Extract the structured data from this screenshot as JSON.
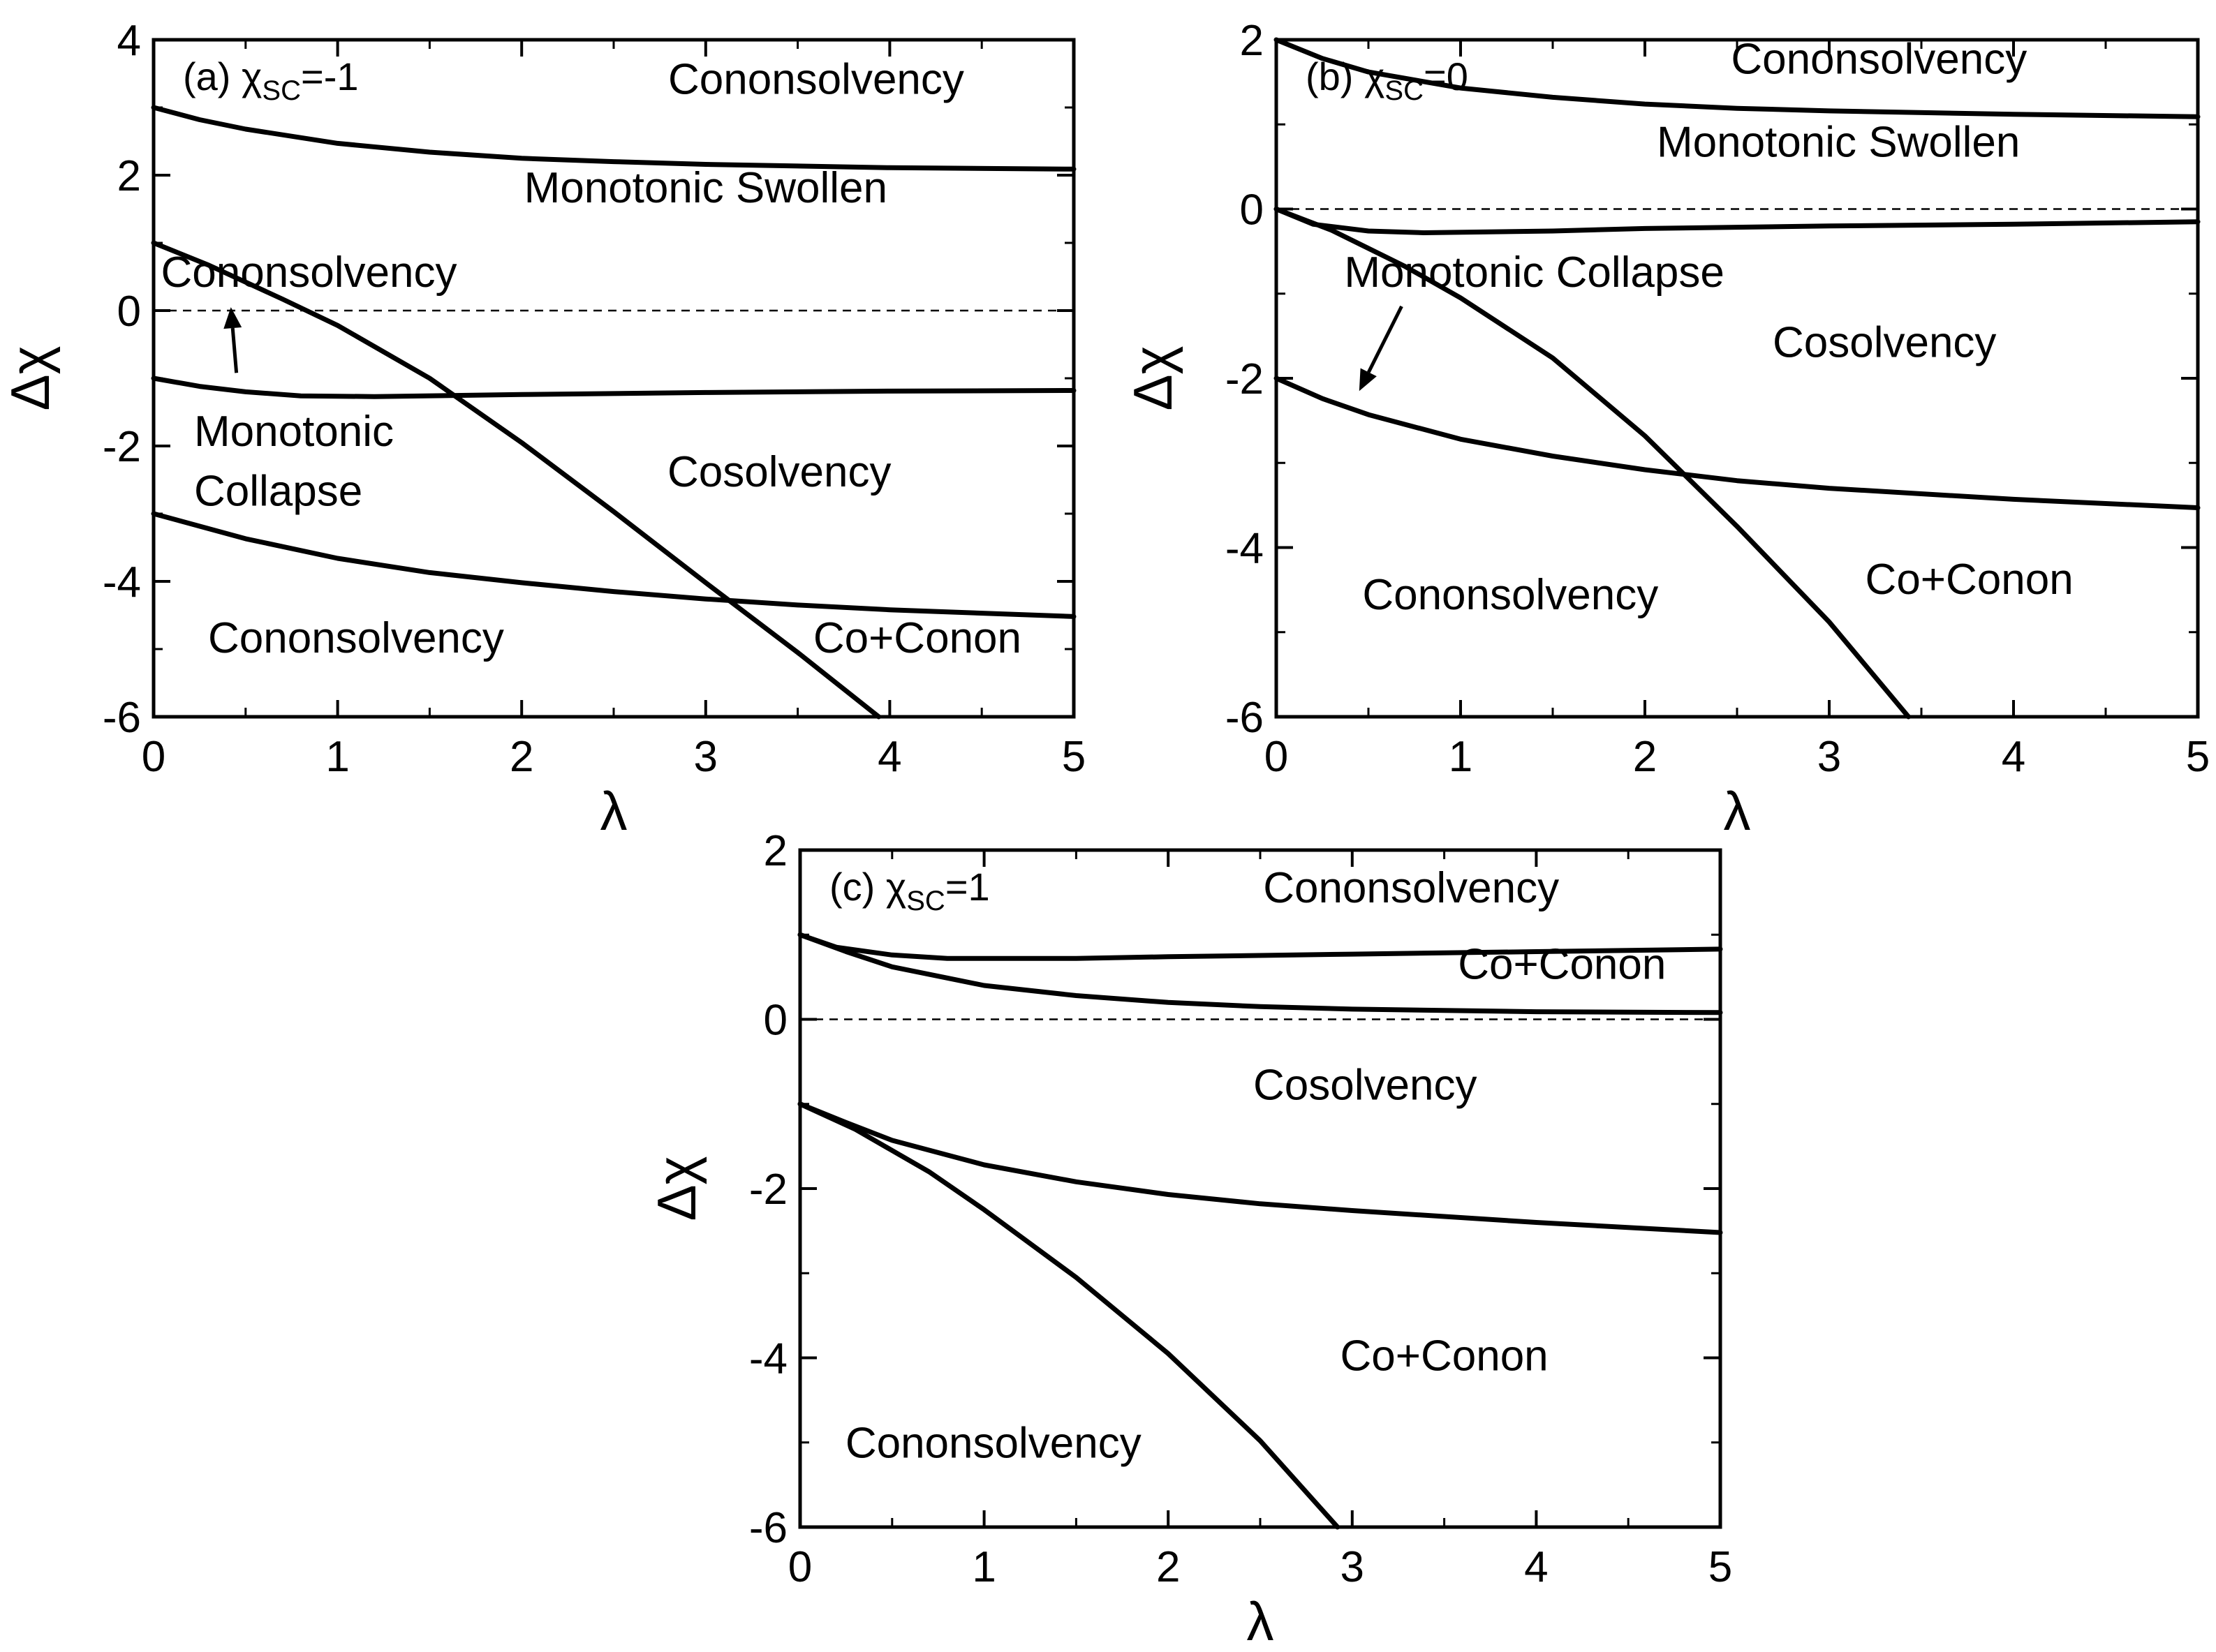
{
  "chart_data": [
    {
      "type": "line",
      "panel_label": {
        "prefix": "(a) ",
        "symbol": "χ",
        "subscript": "SC",
        "suffix": "=-1"
      },
      "xlabel": "λ",
      "ylabel": "Δχ",
      "xlim": [
        0,
        5
      ],
      "ylim": [
        -6,
        4
      ],
      "xticks": [
        "0",
        "1",
        "2",
        "3",
        "4",
        "5"
      ],
      "yticks": [
        "4",
        "2",
        "0",
        "-2",
        "-4",
        "-6"
      ],
      "reference_line": {
        "y": 0,
        "style": "dashed"
      },
      "series": [
        {
          "x": [
            0,
            0.25,
            0.5,
            1,
            1.5,
            2,
            2.5,
            3,
            4,
            5
          ],
          "y": [
            3.0,
            2.82,
            2.68,
            2.47,
            2.34,
            2.25,
            2.2,
            2.16,
            2.11,
            2.09
          ]
        },
        {
          "x": [
            0,
            0.25,
            0.5,
            0.8,
            1.2,
            2,
            3,
            4,
            5
          ],
          "y": [
            -1.0,
            -1.12,
            -1.2,
            -1.26,
            -1.27,
            -1.24,
            -1.21,
            -1.19,
            -1.18
          ]
        },
        {
          "x": [
            0,
            0.5,
            1,
            1.5,
            2,
            2.5,
            3,
            3.5,
            4,
            5
          ],
          "y": [
            -3.0,
            -3.37,
            -3.66,
            -3.87,
            -4.02,
            -4.15,
            -4.26,
            -4.35,
            -4.42,
            -4.52
          ]
        },
        {
          "x": [
            0,
            0.3,
            0.7,
            1,
            1.5,
            2,
            2.5,
            3,
            3.5,
            3.94
          ],
          "y": [
            1.0,
            0.67,
            0.17,
            -0.22,
            -1.0,
            -1.95,
            -2.97,
            -4.02,
            -5.05,
            -6.0
          ]
        }
      ],
      "annotations": [
        {
          "text": "Cononsolvency",
          "x": 3.6,
          "y": 3.2
        },
        {
          "text": "Monotonic Swollen",
          "x": 3.0,
          "y": 1.6
        },
        {
          "text": "Cononsolvency",
          "x": 0.04,
          "y": 0.35
        },
        {
          "text": "Monotonic",
          "x": 0.22,
          "y": -2.0
        },
        {
          "text": "Collapse",
          "x": 0.22,
          "y": -2.88
        },
        {
          "text": "Cosolvency",
          "x": 3.4,
          "y": -2.6
        },
        {
          "text": "Cononsolvency",
          "x": 1.1,
          "y": -5.05
        },
        {
          "text": "Co+Conon",
          "x": 4.15,
          "y": -5.05
        }
      ],
      "arrows": [
        {
          "from": [
            0.45,
            -0.92
          ],
          "to": [
            0.42,
            0.05
          ]
        }
      ]
    },
    {
      "type": "line",
      "panel_label": {
        "prefix": "(b) ",
        "symbol": "χ",
        "subscript": "SC",
        "suffix": "=0"
      },
      "xlabel": "λ",
      "ylabel": "Δχ",
      "xlim": [
        0,
        5
      ],
      "ylim": [
        -6,
        2
      ],
      "xticks": [
        "0",
        "1",
        "2",
        "3",
        "4",
        "5"
      ],
      "yticks": [
        "2",
        "0",
        "-2",
        "-4",
        "-6"
      ],
      "reference_line": {
        "y": 0,
        "style": "dashed"
      },
      "series": [
        {
          "x": [
            0,
            0.25,
            0.5,
            1,
            1.5,
            2,
            2.5,
            3,
            4,
            5
          ],
          "y": [
            2.0,
            1.78,
            1.62,
            1.43,
            1.32,
            1.24,
            1.19,
            1.16,
            1.12,
            1.09
          ]
        },
        {
          "x": [
            0,
            0.2,
            0.5,
            0.8,
            1.5,
            2,
            3,
            4,
            5
          ],
          "y": [
            0.0,
            -0.18,
            -0.26,
            -0.28,
            -0.26,
            -0.23,
            -0.2,
            -0.18,
            -0.15
          ]
        },
        {
          "x": [
            0,
            0.25,
            0.5,
            1,
            1.5,
            2,
            2.5,
            3,
            4,
            5
          ],
          "y": [
            -2.0,
            -2.24,
            -2.43,
            -2.72,
            -2.92,
            -3.08,
            -3.21,
            -3.3,
            -3.43,
            -3.53
          ]
        },
        {
          "x": [
            0,
            0.3,
            0.7,
            1,
            1.5,
            2,
            2.5,
            3,
            3.43
          ],
          "y": [
            0.0,
            -0.25,
            -0.68,
            -1.05,
            -1.76,
            -2.68,
            -3.75,
            -4.88,
            -6.0
          ]
        }
      ],
      "annotations": [
        {
          "text": "Cononsolvency",
          "x": 3.27,
          "y": 1.6
        },
        {
          "text": "Monotonic Swollen",
          "x": 3.05,
          "y": 0.62
        },
        {
          "text": "Monotonic Collapse",
          "x": 1.4,
          "y": -0.92
        },
        {
          "text": "Cosolvency",
          "x": 3.3,
          "y": -1.75
        },
        {
          "text": "Cononsolvency",
          "x": 1.27,
          "y": -4.73
        },
        {
          "text": "Co+Conon",
          "x": 3.76,
          "y": -4.55
        }
      ],
      "arrows": [
        {
          "from": [
            0.68,
            -1.15
          ],
          "to": [
            0.45,
            -2.15
          ]
        }
      ]
    },
    {
      "type": "line",
      "panel_label": {
        "prefix": "(c) ",
        "symbol": "χ",
        "subscript": "SC",
        "suffix": "=1"
      },
      "xlabel": "λ",
      "ylabel": "Δχ",
      "xlim": [
        0,
        5
      ],
      "ylim": [
        -6,
        2
      ],
      "xticks": [
        "0",
        "1",
        "2",
        "3",
        "4",
        "5"
      ],
      "yticks": [
        "2",
        "0",
        "-2",
        "-4",
        "-6"
      ],
      "reference_line": {
        "y": 0,
        "style": "dashed"
      },
      "series": [
        {
          "x": [
            0,
            0.2,
            0.5,
            0.8,
            1.5,
            2,
            3,
            4,
            5
          ],
          "y": [
            1.0,
            0.85,
            0.76,
            0.72,
            0.72,
            0.74,
            0.77,
            0.8,
            0.83
          ]
        },
        {
          "x": [
            0,
            0.25,
            0.5,
            1,
            1.5,
            2,
            2.5,
            3,
            4,
            5
          ],
          "y": [
            1.0,
            0.8,
            0.62,
            0.4,
            0.28,
            0.2,
            0.15,
            0.12,
            0.09,
            0.08
          ]
        },
        {
          "x": [
            0,
            0.25,
            0.5,
            1,
            1.5,
            2,
            2.5,
            3,
            4,
            5
          ],
          "y": [
            -1.0,
            -1.22,
            -1.43,
            -1.72,
            -1.92,
            -2.07,
            -2.18,
            -2.26,
            -2.4,
            -2.52
          ]
        },
        {
          "x": [
            0,
            0.3,
            0.7,
            1,
            1.5,
            2,
            2.5,
            2.92
          ],
          "y": [
            -1.0,
            -1.3,
            -1.8,
            -2.25,
            -3.05,
            -3.95,
            -4.98,
            -6.0
          ]
        }
      ],
      "annotations": [
        {
          "text": "Cononsolvency",
          "x": 3.32,
          "y": 1.38
        },
        {
          "text": "Co+Conon",
          "x": 4.14,
          "y": 0.48
        },
        {
          "text": "Cosolvency",
          "x": 3.07,
          "y": -0.95
        },
        {
          "text": "Co+Conon",
          "x": 3.5,
          "y": -4.15
        },
        {
          "text": "Cononsolvency",
          "x": 1.05,
          "y": -5.18
        }
      ],
      "arrows": []
    }
  ]
}
